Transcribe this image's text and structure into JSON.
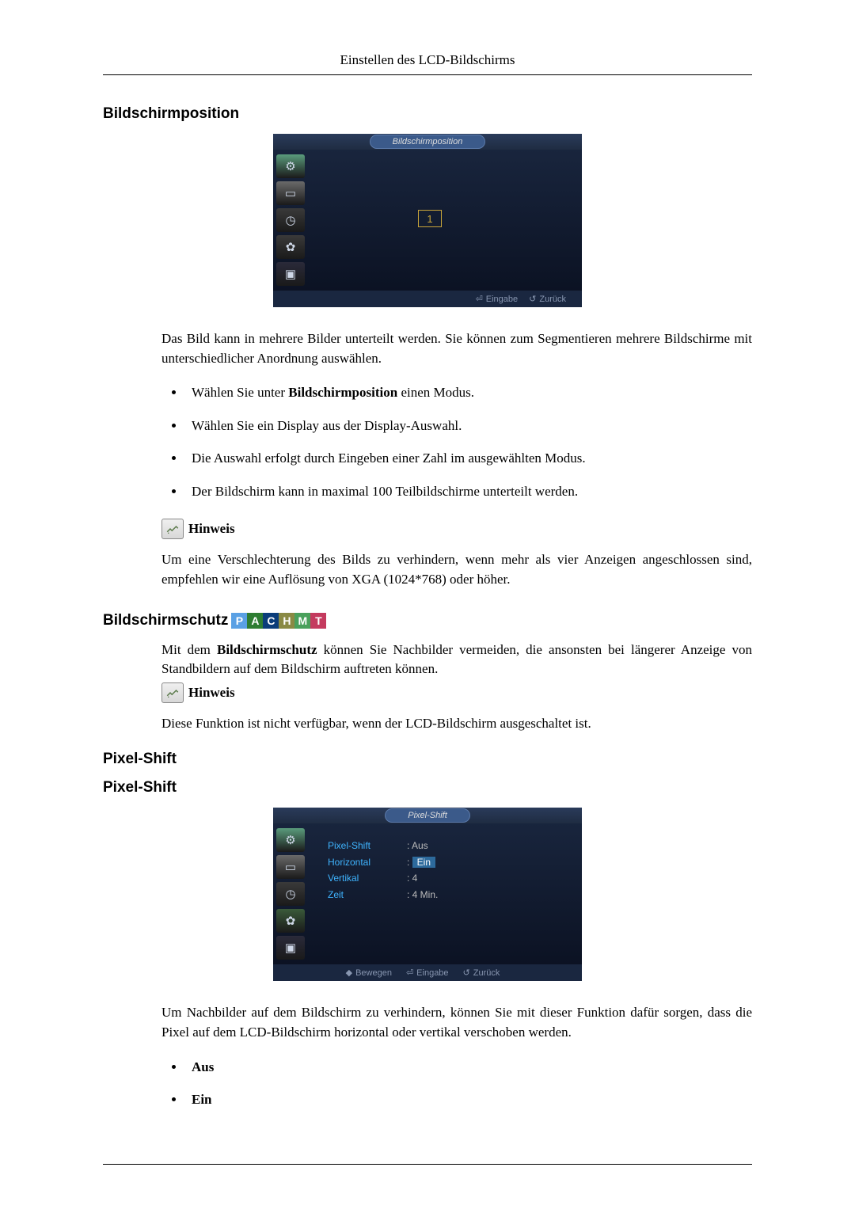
{
  "page": {
    "header": "Einstellen des LCD-Bildschirms"
  },
  "section1": {
    "heading": "Bildschirmposition",
    "osd": {
      "title": "Bildschirmposition",
      "number": "1",
      "footer_enter": "Eingabe",
      "footer_back": "Zurück",
      "icons": [
        {
          "bg": "#5a9c7c",
          "glyph": "⚙"
        },
        {
          "bg": "#6a6a6a",
          "glyph": "▭"
        },
        {
          "bg": "#3a3a3a",
          "glyph": "◷"
        },
        {
          "bg": "#3a3a3a",
          "glyph": "✿"
        },
        {
          "bg": "#2a2a3a",
          "glyph": "▣"
        }
      ]
    },
    "para1": "Das Bild kann in mehrere Bilder unterteilt werden. Sie können zum Segmentieren mehrere Bildschirme mit unterschiedlicher Anordnung auswählen.",
    "bullets": [
      {
        "pre": "Wählen Sie unter ",
        "bold": "Bildschirmposition",
        "post": " einen Modus."
      },
      {
        "pre": "Wählen Sie ein Display aus der Display-Auswahl.",
        "bold": "",
        "post": ""
      },
      {
        "pre": "Die Auswahl erfolgt durch Eingeben einer Zahl im ausgewählten Modus.",
        "bold": "",
        "post": ""
      },
      {
        "pre": "Der Bildschirm kann in maximal 100 Teilbildschirme unterteilt werden.",
        "bold": "",
        "post": ""
      }
    ],
    "note_label": "Hinweis",
    "note_body": "Um eine Verschlechterung des Bilds zu verhindern, wenn mehr als vier Anzeigen angeschlossen sind, empfehlen wir eine Auflösung von XGA (1024*768) oder höher."
  },
  "section2": {
    "heading": "Bildschirmschutz",
    "badges": [
      {
        "t": "P",
        "c": "#5aa0e4"
      },
      {
        "t": "A",
        "c": "#2e7d32"
      },
      {
        "t": "C",
        "c": "#0b3d7a"
      },
      {
        "t": "H",
        "c": "#8a8a44"
      },
      {
        "t": "M",
        "c": "#4aa05c"
      },
      {
        "t": "T",
        "c": "#c43a5e"
      }
    ],
    "para_pre": "Mit dem ",
    "para_bold": "Bildschirmschutz",
    "para_post": " können Sie Nachbilder vermeiden, die ansonsten bei längerer Anzeige von Standbildern auf dem Bildschirm auftreten können.",
    "note_label": "Hinweis",
    "note_body": "Diese Funktion ist nicht verfügbar, wenn der LCD-Bildschirm ausgeschaltet ist."
  },
  "section3": {
    "heading1": "Pixel-Shift",
    "heading2": "Pixel-Shift",
    "osd": {
      "title": "Pixel-Shift",
      "rows": [
        {
          "label": "Pixel-Shift",
          "val_prefix": ": ",
          "val_plain": "Aus",
          "highlight": false
        },
        {
          "label": "Horizontal",
          "val_prefix": ": ",
          "val_plain": "Ein",
          "highlight": true
        },
        {
          "label": "Vertikal",
          "val_prefix": ": ",
          "val_plain": "4",
          "highlight": false
        },
        {
          "label": "Zeit",
          "val_prefix": ": ",
          "val_plain": "4 Min.",
          "highlight": false
        }
      ],
      "footer_move": "Bewegen",
      "footer_enter": "Eingabe",
      "footer_back": "Zurück",
      "icons": [
        {
          "bg": "#5a9c7c",
          "glyph": "⚙"
        },
        {
          "bg": "#6a6a6a",
          "glyph": "▭"
        },
        {
          "bg": "#3a3a3a",
          "glyph": "◷"
        },
        {
          "bg": "#3a5a3a",
          "glyph": "✿"
        },
        {
          "bg": "#2a2a3a",
          "glyph": "▣"
        }
      ]
    },
    "para1": "Um Nachbilder auf dem Bildschirm zu verhindern, können Sie mit dieser Funktion dafür sorgen, dass die Pixel auf dem LCD-Bildschirm horizontal oder vertikal verschoben werden.",
    "bullets": [
      {
        "bold": "Aus"
      },
      {
        "bold": "Ein"
      }
    ]
  }
}
